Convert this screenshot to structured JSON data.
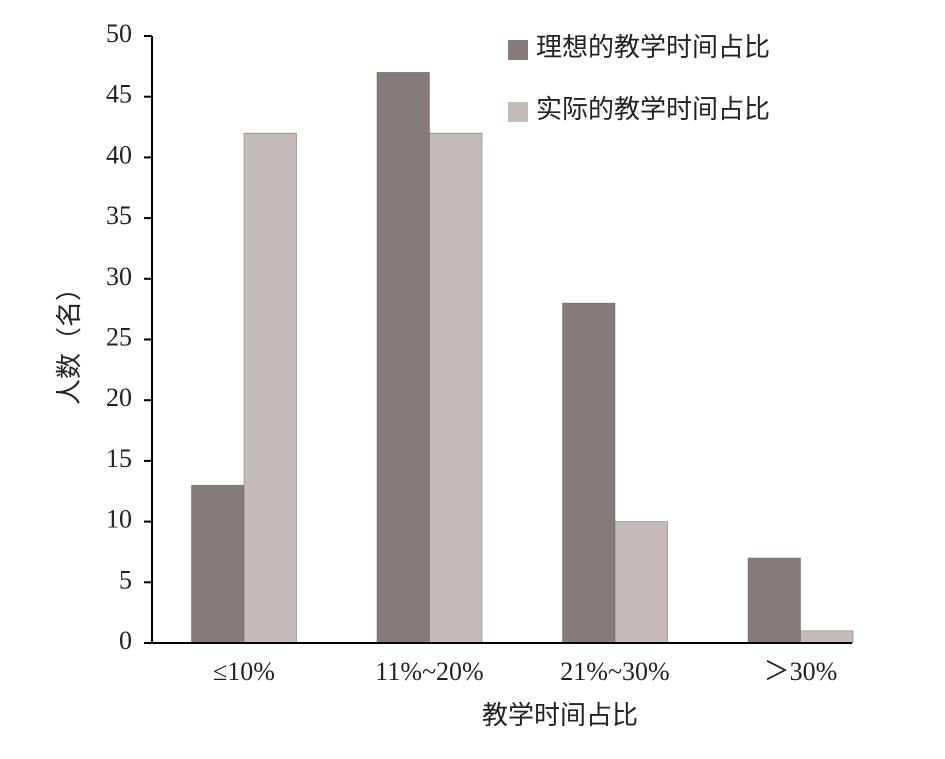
{
  "chart_data": {
    "type": "bar",
    "categories": [
      "≤10%",
      "11%~20%",
      "21%~30%",
      "＞30%"
    ],
    "series": [
      {
        "name": "理想的教学时间占比",
        "color": "#857c7a",
        "values": [
          13,
          47,
          28,
          7
        ]
      },
      {
        "name": "实际的教学时间占比",
        "color": "#c4bbb9",
        "values": [
          42,
          42,
          10,
          1
        ]
      }
    ],
    "y_label": "人数（名）",
    "x_label": "教学时间占比",
    "ylim": [
      0,
      50
    ],
    "yticks": [
      0,
      5,
      10,
      15,
      20,
      25,
      30,
      35,
      40,
      45,
      50
    ],
    "legend": "top-right"
  }
}
